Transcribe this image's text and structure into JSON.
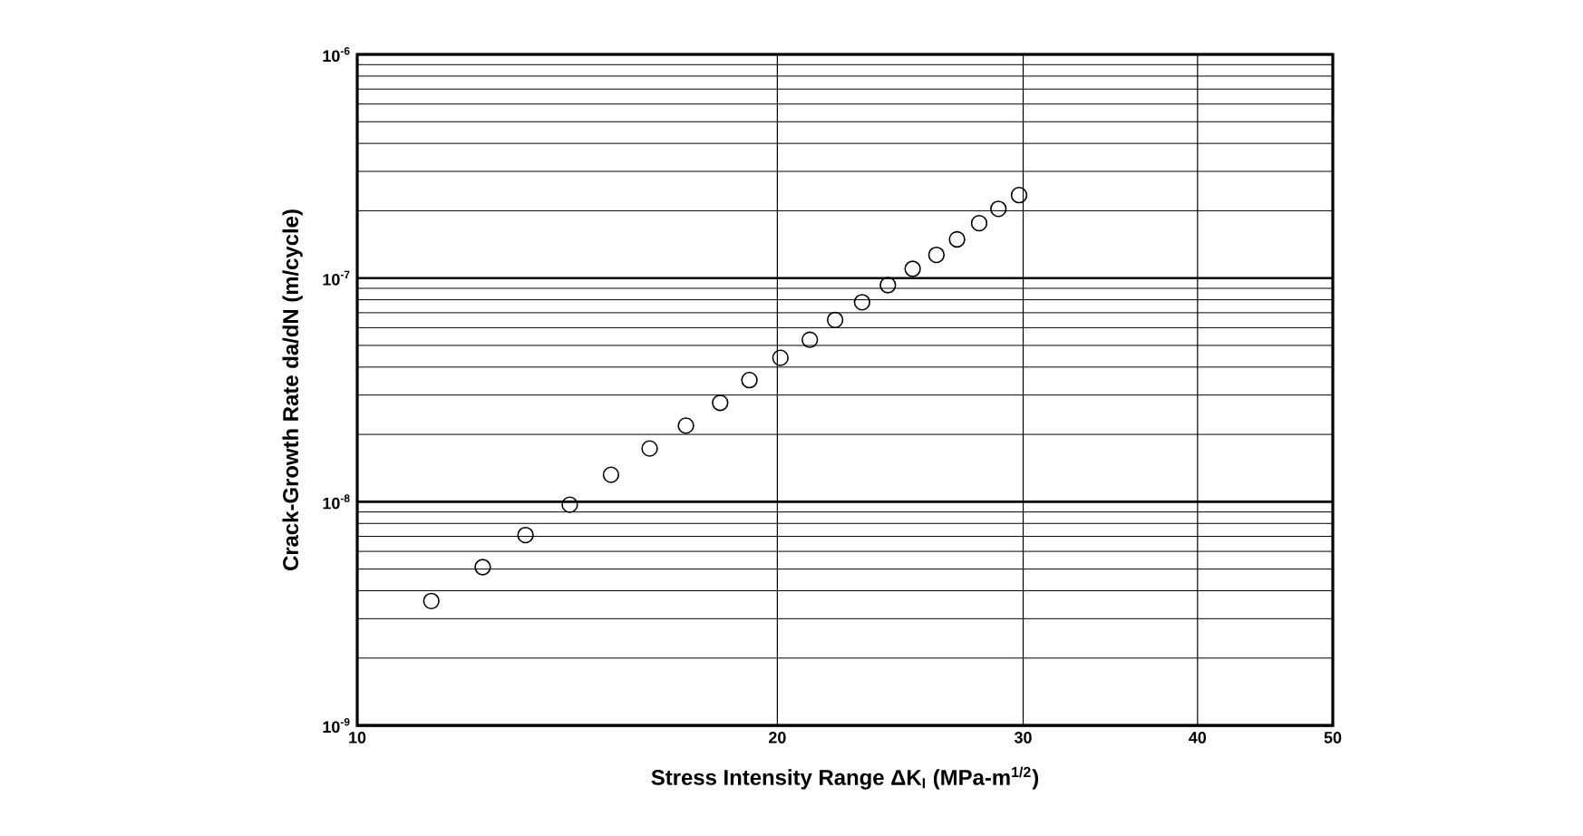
{
  "chart_data": {
    "type": "scatter",
    "xlabel": "Stress Intensity Range ΔK$_{I}$ (MPa-m$^{1/2}$)",
    "ylabel": "Crack-Growth Rate da/dN (m/cycle)",
    "log": "xy",
    "grid": true,
    "marker": "circle",
    "xlim": [
      10,
      50
    ],
    "ylim": [
      1e-09,
      1e-06
    ],
    "xticks": [
      10,
      20,
      30,
      40,
      50
    ],
    "yticks": [
      {
        "value": 1e-09,
        "label": "10$^{-9}$"
      },
      {
        "value": 1e-08,
        "label": "10$^{-8}$"
      },
      {
        "value": 1e-07,
        "label": "10$^{-7}$"
      },
      {
        "value": 1e-06,
        "label": "10$^{-6}$"
      }
    ],
    "x": [
      11.3,
      12.3,
      13.2,
      14.2,
      15.2,
      16.2,
      17.2,
      18.2,
      19.1,
      20.1,
      21.1,
      22.0,
      23.0,
      24.0,
      25.0,
      26.0,
      26.9,
      27.9,
      28.8,
      29.8
    ],
    "series": [
      {
        "color": "#000000",
        "values": [
          3.6e-09,
          5.1e-09,
          7.1e-09,
          9.7e-09,
          1.32e-08,
          1.73e-08,
          2.19e-08,
          2.77e-08,
          3.5e-08,
          4.4e-08,
          5.3e-08,
          6.5e-08,
          7.8e-08,
          9.3e-08,
          1.1e-07,
          1.27e-07,
          1.49e-07,
          1.76e-07,
          2.04e-07,
          2.35e-07
        ]
      }
    ]
  }
}
